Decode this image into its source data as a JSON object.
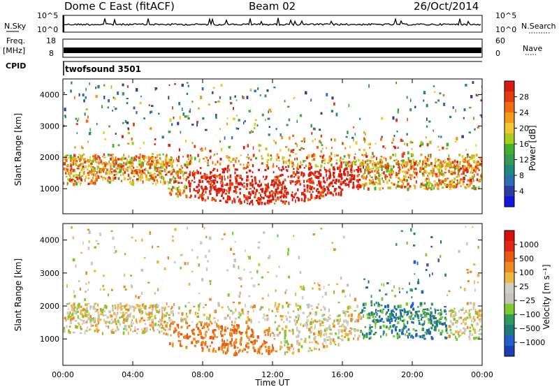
{
  "header": {
    "title": "Dome C East (fitACF)",
    "beam": "Beam 02",
    "date": "26/Oct/2014"
  },
  "top_panels": {
    "nsky_label": "N.Sky",
    "nsearch_label": "N.Search",
    "freq_label": "Freq.",
    "freq_unit": "[MHz]",
    "nave_label": "Nave",
    "cpid_label": "CPID",
    "cpid_value": "twofsound 3501",
    "noise_left_ticks": [
      "10^5",
      "10^0"
    ],
    "noise_right_ticks": [
      "10^5",
      "10^0"
    ],
    "freq_ticks": [
      "18",
      "8"
    ],
    "nave_ticks": [
      "60",
      "0"
    ]
  },
  "colors": {
    "power_scale": [
      "#1515e0",
      "#2a3fa0",
      "#2e6fb0",
      "#1f8a7a",
      "#3a9a55",
      "#44b030",
      "#a8cc22",
      "#f0c830",
      "#f49a1e",
      "#ef6c12",
      "#e63a10",
      "#d81a10"
    ],
    "velocity_scale": [
      "#1a3fb0",
      "#2060c8",
      "#1f7a78",
      "#2f9a5a",
      "#7acc30",
      "#c4c4bc",
      "#cfcfc4",
      "#f0b840",
      "#ee8a1e",
      "#e85a14",
      "#e02818",
      "#d60f0f"
    ]
  },
  "chart_data": [
    {
      "type": "heatmap",
      "name": "power",
      "ylabel": "Slant Range [km]",
      "yticks": [
        1000,
        2000,
        3000,
        4000
      ],
      "ylim": [
        200,
        4500
      ],
      "xlim": [
        0,
        24
      ],
      "xticks": [
        "00:00",
        "04:00",
        "08:00",
        "12:00",
        "16:00",
        "20:00",
        "00:00"
      ],
      "colorbar": {
        "label": "Power [dB]",
        "ticks": [
          "28",
          "24",
          "20",
          "16",
          "12",
          "8",
          "4"
        ],
        "range": [
          0,
          30
        ]
      }
    },
    {
      "type": "heatmap",
      "name": "velocity",
      "ylabel": "Slant Range [km]",
      "yticks": [
        1000,
        2000,
        3000,
        4000
      ],
      "ylim": [
        200,
        4500
      ],
      "xlim": [
        0,
        24
      ],
      "xticks": [
        "00:00",
        "04:00",
        "08:00",
        "12:00",
        "16:00",
        "20:00",
        "00:00"
      ],
      "xlabel": "Time UT",
      "colorbar": {
        "label": "Velocity [m s⁻¹]",
        "ticks": [
          "1000",
          "500",
          "100",
          "25",
          "−25",
          "−100",
          "−500",
          "−1000"
        ],
        "range": [
          -1000,
          1000
        ]
      }
    }
  ]
}
